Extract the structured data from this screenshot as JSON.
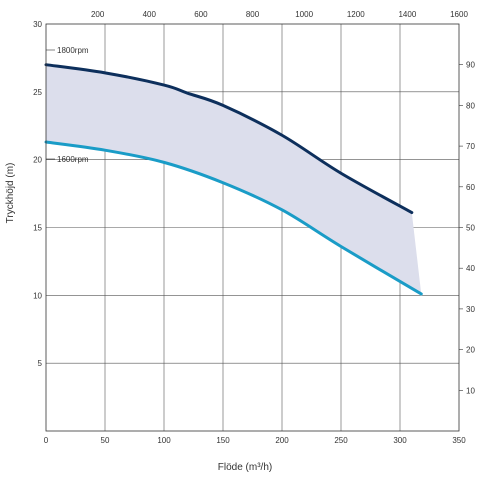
{
  "chart_data": {
    "type": "line",
    "title": "",
    "xlabel": "Flöde (m³/h)",
    "ylabel": "Tryckhöjd (m)",
    "xlim": [
      0,
      350
    ],
    "ylim": [
      0,
      30
    ],
    "x_ticks": [
      0,
      50,
      100,
      150,
      200,
      250,
      300,
      350
    ],
    "y_ticks": [
      5,
      10,
      15,
      20,
      25,
      30
    ],
    "top_axis": {
      "ticks": [
        200,
        400,
        600,
        800,
        1000,
        1200,
        1400,
        1600
      ],
      "range": [
        0,
        1600
      ]
    },
    "right_axis": {
      "ticks": [
        10,
        20,
        30,
        40,
        50,
        60,
        70,
        80,
        90
      ],
      "range": [
        0,
        100
      ]
    },
    "grid": true,
    "band_color": "#dcdeec",
    "series": [
      {
        "name": "1800rpm",
        "color": "#0d2f5c",
        "x": [
          0,
          50,
          100,
          120,
          150,
          200,
          250,
          310
        ],
        "y": [
          27.0,
          26.4,
          25.5,
          24.9,
          24.0,
          21.8,
          19.0,
          16.1
        ]
      },
      {
        "name": "1600rpm",
        "color": "#1a9cc7",
        "x": [
          0,
          50,
          100,
          150,
          200,
          250,
          318
        ],
        "y": [
          21.3,
          20.7,
          19.8,
          18.3,
          16.3,
          13.6,
          10.1
        ]
      }
    ]
  }
}
